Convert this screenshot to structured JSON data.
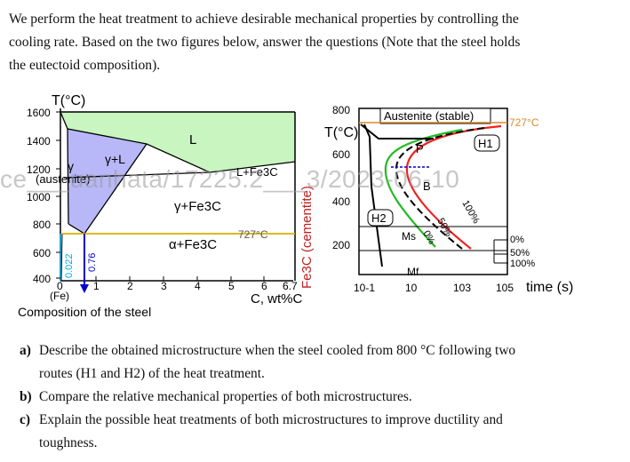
{
  "intro": {
    "line1": "We perform the heat treatment to achieve desirable mechanical properties by controlling the",
    "line2": "cooling rate. Based on the two figures below, answer the questions (Note that the steel holds",
    "line3": "the eutectoid composition)."
  },
  "watermark": "ce___uanhata/17225.2___3/2023-06-10",
  "phase_diagram": {
    "ylabel": "T(°C)",
    "yticks": [
      "1600",
      "1400",
      "1200",
      "1000",
      "800",
      "600",
      "400"
    ],
    "xticks": [
      "0",
      "1",
      "2",
      "3",
      "4",
      "5",
      "6",
      "6.7"
    ],
    "x_origin_note": "(Fe)",
    "xlabel": "C, wt%C",
    "xlabel_below": "Composition of the steel",
    "right_axis_label": "Fe3C (cementite)",
    "regions": {
      "liquid": "L",
      "gamma_l": "γ+L",
      "gamma": "γ",
      "gamma_note": "(austenite)",
      "l_fe3c": "L+Fe3C",
      "gamma_fe3c": "γ+Fe3C",
      "alpha_fe3c": "α+Fe3C"
    },
    "eutectoid_label": "727°C",
    "eutectoid_c": 0.76,
    "eutectoid_c_label": "0.76",
    "alpha_c_label": "0.022",
    "colors": {
      "liquid": "#c8f5c0",
      "austenite": "#b8b8f8",
      "eutectoid": "#d4b000",
      "comp": "#0000cc"
    }
  },
  "ttt_diagram": {
    "ylabel": "T(°C)",
    "yticks": [
      "800",
      "600",
      "400",
      "200"
    ],
    "xticks": [
      "10-1",
      "10",
      "103",
      "105"
    ],
    "xlabel": "time (s)",
    "austenite_label": "Austenite (stable)",
    "a1_label": "727°C",
    "P": "P",
    "B": "B",
    "Ms": "Ms",
    "Mf": "Mf",
    "H1": "H1",
    "H2": "H2",
    "curve_labels": {
      "c0": "0%",
      "c50": "50%",
      "c100": "100%"
    },
    "legend": [
      "0%",
      "50%",
      "100%"
    ],
    "colors": {
      "c0": "#22bb22",
      "c50": "#000000",
      "c100": "#ee2222",
      "a1": "#d98a2a"
    }
  },
  "questions": [
    {
      "label": "a)",
      "line1": "Describe the obtained microstructure when the steel cooled from 800 °C following two",
      "line2": "routes (H1 and H2) of the heat treatment."
    },
    {
      "label": "b)",
      "line1": "Compare the relative mechanical properties of both microstructures.",
      "line2": ""
    },
    {
      "label": "c)",
      "line1": "Explain the possible heat treatments of both microstructures to improve ductility and",
      "line2": "toughness."
    }
  ]
}
